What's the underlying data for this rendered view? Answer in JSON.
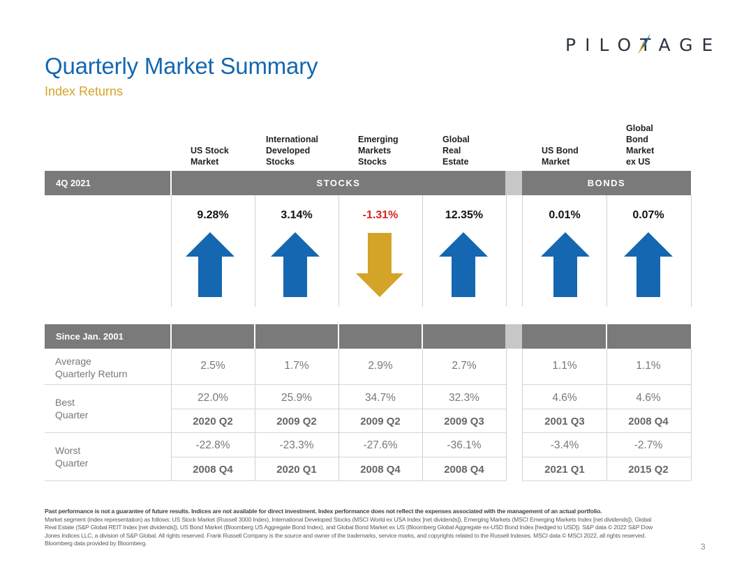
{
  "brand": {
    "logo_text": "PILOTAGE",
    "colors": {
      "blue": "#1467b0",
      "gold": "#d3a428",
      "band_gray": "#7a7a7a",
      "negative_red": "#d6251f"
    }
  },
  "header": {
    "title": "Quarterly Market Summary",
    "subtitle": "Index Returns"
  },
  "columns": [
    {
      "label": "US Stock\nMarket"
    },
    {
      "label": "International\nDeveloped\nStocks"
    },
    {
      "label": "Emerging\nMarkets\nStocks"
    },
    {
      "label": "Global\nReal\nEstate"
    },
    {
      "label": "US Bond\nMarket"
    },
    {
      "label": "Global\nBond\nMarket\nex US"
    }
  ],
  "quarter_band": {
    "period": "4Q 2021",
    "stocks": "STOCKS",
    "bonds": "BONDS"
  },
  "quarter_returns": [
    {
      "value": "9.28%",
      "direction": "up-arrow-icon"
    },
    {
      "value": "3.14%",
      "direction": "up-arrow-icon"
    },
    {
      "value": "-1.31%",
      "direction": "down-arrow-icon"
    },
    {
      "value": "12.35%",
      "direction": "up-arrow-icon"
    },
    {
      "value": "0.01%",
      "direction": "up-arrow-icon"
    },
    {
      "value": "0.07%",
      "direction": "up-arrow-icon"
    }
  ],
  "since_band": {
    "period": "Since Jan. 2001"
  },
  "stats": {
    "average": {
      "label": "Average\nQuarterly Return",
      "values": [
        "2.5%",
        "1.7%",
        "2.9%",
        "2.7%",
        "1.1%",
        "1.1%"
      ]
    },
    "best": {
      "label": "Best\nQuarter",
      "values": [
        "22.0%",
        "25.9%",
        "34.7%",
        "32.3%",
        "4.6%",
        "4.6%"
      ],
      "quarters": [
        "2020 Q2",
        "2009 Q2",
        "2009 Q2",
        "2009 Q3",
        "2001 Q3",
        "2008 Q4"
      ]
    },
    "worst": {
      "label": "Worst\nQuarter",
      "values": [
        "-22.8%",
        "-23.3%",
        "-27.6%",
        "-36.1%",
        "-3.4%",
        "-2.7%"
      ],
      "quarters": [
        "2008 Q4",
        "2020 Q1",
        "2008 Q4",
        "2008 Q4",
        "2021 Q1",
        "2015 Q2"
      ]
    }
  },
  "footer": {
    "disclaimer_bold": "Past performance is not a guarantee of future results. Indices are not available for direct investment. Index performance does not reflect the expenses associated with the management of an actual portfolio.",
    "disclaimer_body": "Market segment (index representation) as follows: US Stock Market (Russell 3000 Index), International Developed Stocks (MSCI World ex USA Index [net dividends]), Emerging Markets (MSCI Emerging Markets Index [net dividends]), Global Real Estate (S&P Global REIT Index [net dividends]), US Bond Market (Bloomberg US Aggregate Bond Index), and Global Bond Market ex US (Bloomberg Global Aggregate ex-USD Bond Index [hedged to USD]). S&P data © 2022 S&P Dow Jones Indices LLC, a division of S&P Global. All rights reserved. Frank Russell Company is the source and owner of the trademarks, service marks, and copyrights related to the Russell Indexes. MSCI data © MSCI 2022, all rights reserved. Bloomberg data provided by Bloomberg.",
    "page_number": "3"
  }
}
